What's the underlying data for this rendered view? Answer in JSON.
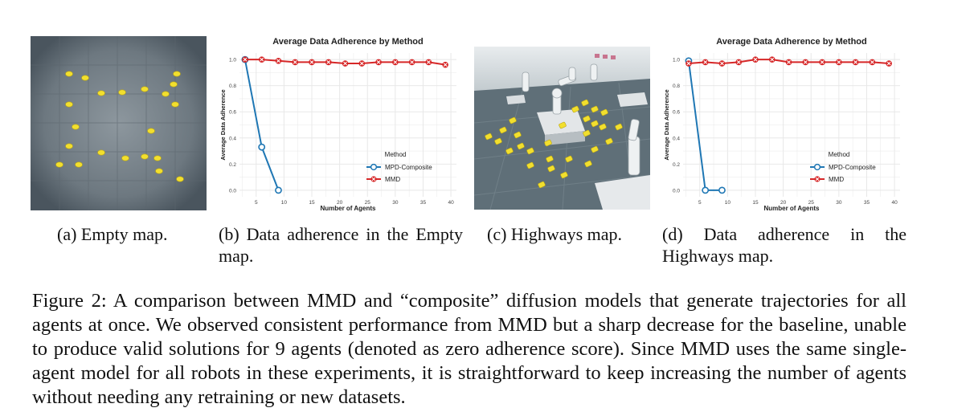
{
  "figure": {
    "caption_prefix": "Figure 2:",
    "caption_text": "A comparison between MMD and “composite” diffusion models that generate trajectories for all agents at once. We observed consistent performance from MMD but a sharp decrease for the baseline, unable to produce valid solutions for 9 agents (denoted as zero adherence score). Since MMD uses the same single-agent model for all robots in these experiments, it is straightforward to keep increasing the number of agents without needing any retraining or new datasets."
  },
  "subcaptions": {
    "a": "(a) Empty map.",
    "b": "(b) Data adherence in the Empty map.",
    "c": "(c) Highways map.",
    "d": "(d) Data adherence in the Highways map."
  },
  "colors": {
    "mpd": "#1f77b4",
    "mmd": "#d62728",
    "grid": "#e8e8e8",
    "agent": "#f2df2e"
  },
  "chart_data": [
    {
      "type": "line",
      "title": "Average Data Adherence by Method",
      "xlabel": "Number of Agents",
      "ylabel": "Average Data Adherence",
      "xlim": [
        2,
        41
      ],
      "ylim": [
        -0.05,
        1.05
      ],
      "xticks": [
        5,
        10,
        15,
        20,
        25,
        30,
        35,
        40
      ],
      "yticks": [
        0.0,
        0.2,
        0.4,
        0.6,
        0.8,
        1.0
      ],
      "grid": true,
      "legend_title": "Method",
      "legend_position": "center-right",
      "series": [
        {
          "name": "MPD-Composite",
          "x": [
            3,
            6,
            9
          ],
          "y": [
            1.0,
            0.33,
            0.0
          ]
        },
        {
          "name": "MMD",
          "x": [
            3,
            6,
            9,
            12,
            15,
            18,
            21,
            24,
            27,
            30,
            33,
            36,
            39
          ],
          "y": [
            1.0,
            1.0,
            0.99,
            0.98,
            0.98,
            0.98,
            0.97,
            0.97,
            0.98,
            0.98,
            0.98,
            0.98,
            0.96
          ]
        }
      ]
    },
    {
      "type": "line",
      "title": "Average Data Adherence by Method",
      "xlabel": "Number of Agents",
      "ylabel": "Average Data Adherence",
      "xlim": [
        2,
        41
      ],
      "ylim": [
        -0.05,
        1.05
      ],
      "xticks": [
        5,
        10,
        15,
        20,
        25,
        30,
        35,
        40
      ],
      "yticks": [
        0.0,
        0.2,
        0.4,
        0.6,
        0.8,
        1.0
      ],
      "grid": true,
      "legend_title": "Method",
      "legend_position": "center-right",
      "series": [
        {
          "name": "MPD-Composite",
          "x": [
            3,
            6,
            9
          ],
          "y": [
            0.99,
            0.0,
            0.0
          ]
        },
        {
          "name": "MMD",
          "x": [
            3,
            6,
            9,
            12,
            15,
            18,
            21,
            24,
            27,
            30,
            33,
            36,
            39
          ],
          "y": [
            0.97,
            0.98,
            0.97,
            0.98,
            1.0,
            1.0,
            0.98,
            0.98,
            0.98,
            0.98,
            0.98,
            0.98,
            0.97
          ]
        }
      ]
    }
  ]
}
